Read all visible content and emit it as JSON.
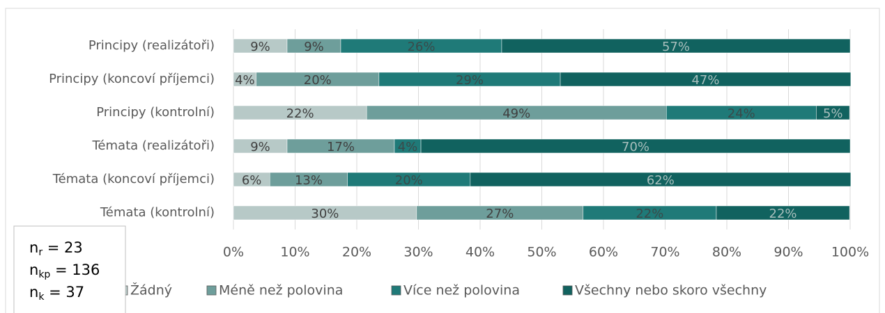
{
  "chart_data": {
    "type": "stacked_barh",
    "categories": [
      "Principy (realizátoři)",
      "Principy (koncoví příjemci)",
      "Principy (kontrolní)",
      "Témata (realizátoři)",
      "Témata (koncoví příjemci)",
      "Témata (kontrolní)"
    ],
    "series": [
      {
        "name": "Žádný",
        "color": "#b7c9c7",
        "label_color": "#404040",
        "values": [
          8.7,
          3.7,
          21.6,
          8.7,
          5.9,
          29.7
        ],
        "value_labels": [
          "9%",
          "4%",
          "22%",
          "9%",
          "6%",
          "30%"
        ]
      },
      {
        "name": "Méně než polovina",
        "color": "#6e9e9b",
        "label_color": "#404040",
        "values": [
          8.7,
          19.9,
          48.6,
          17.4,
          12.6,
          27.0
        ],
        "value_labels": [
          "9%",
          "20%",
          "49%",
          "17%",
          "13%",
          "27%"
        ]
      },
      {
        "name": "Více než polovina",
        "color": "#1f7a78",
        "label_color": "#3a4a4a",
        "values": [
          26.1,
          29.4,
          24.3,
          4.3,
          19.9,
          21.6
        ],
        "value_labels": [
          "26%",
          "29%",
          "24%",
          "4%",
          "20%",
          "22%"
        ]
      },
      {
        "name": "Všechny nebo skoro všechny",
        "color": "#11625f",
        "label_color": "#a9bfbd",
        "values": [
          56.5,
          47.1,
          5.4,
          69.6,
          61.7,
          21.6
        ],
        "value_labels": [
          "57%",
          "47%",
          "5%",
          "70%",
          "62%",
          "22%"
        ]
      }
    ],
    "xlim": [
      0,
      100
    ],
    "xticks": [
      {
        "value": 0,
        "label": "0%"
      },
      {
        "value": 10,
        "label": "10%"
      },
      {
        "value": 20,
        "label": "20%"
      },
      {
        "value": 30,
        "label": "30%"
      },
      {
        "value": 40,
        "label": "40%"
      },
      {
        "value": 50,
        "label": "50%"
      },
      {
        "value": 60,
        "label": "60%"
      },
      {
        "value": 70,
        "label": "70%"
      },
      {
        "value": 80,
        "label": "80%"
      },
      {
        "value": 90,
        "label": "90%"
      },
      {
        "value": 100,
        "label": "100%"
      }
    ],
    "grid": true,
    "legend": "bottom",
    "notes": [
      {
        "base": "n",
        "sub": "r",
        "text": " = 23"
      },
      {
        "base": "n",
        "sub": "kp",
        "text": " = 136"
      },
      {
        "base": "n",
        "sub": "k",
        "text": " = 37"
      }
    ]
  }
}
